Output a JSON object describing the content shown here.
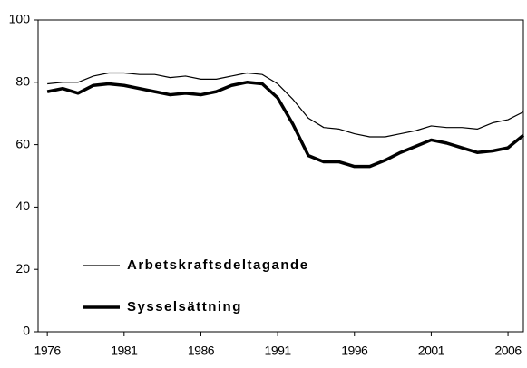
{
  "chart_data": {
    "type": "line",
    "x": [
      1976,
      1977,
      1978,
      1979,
      1980,
      1981,
      1982,
      1983,
      1984,
      1985,
      1986,
      1987,
      1988,
      1989,
      1990,
      1991,
      1992,
      1993,
      1994,
      1995,
      1996,
      1997,
      1998,
      1999,
      2000,
      2001,
      2002,
      2003,
      2004,
      2005,
      2006,
      2007
    ],
    "series": [
      {
        "name": "Arbetskraftsdeltagande",
        "color": "#000000",
        "width": 1.2,
        "values": [
          79.5,
          80,
          80,
          82,
          83,
          83,
          82.5,
          82.5,
          81.5,
          82,
          81,
          81,
          82,
          83,
          82.5,
          79.5,
          74.5,
          68.5,
          65.5,
          65,
          63.5,
          62.5,
          62.5,
          63.5,
          64.5,
          66,
          65.5,
          65.5,
          65,
          67,
          68,
          70.5
        ]
      },
      {
        "name": "Sysselsättning",
        "color": "#000000",
        "width": 3.5,
        "values": [
          77,
          78,
          76.5,
          79,
          79.5,
          79,
          78,
          77,
          76,
          76.5,
          76,
          77,
          79,
          80,
          79.5,
          75,
          66.5,
          56.5,
          54.5,
          54.5,
          53,
          53,
          55,
          57.5,
          59.5,
          61.5,
          60.5,
          59,
          57.5,
          58,
          59,
          63
        ]
      }
    ],
    "xlim": [
      1975.4,
      2007
    ],
    "xticks": [
      1976,
      1981,
      1986,
      1991,
      1996,
      2001,
      2006
    ],
    "ylim": [
      0,
      100
    ],
    "yticks": [
      0,
      20,
      40,
      60,
      80,
      100
    ],
    "grid": false
  }
}
